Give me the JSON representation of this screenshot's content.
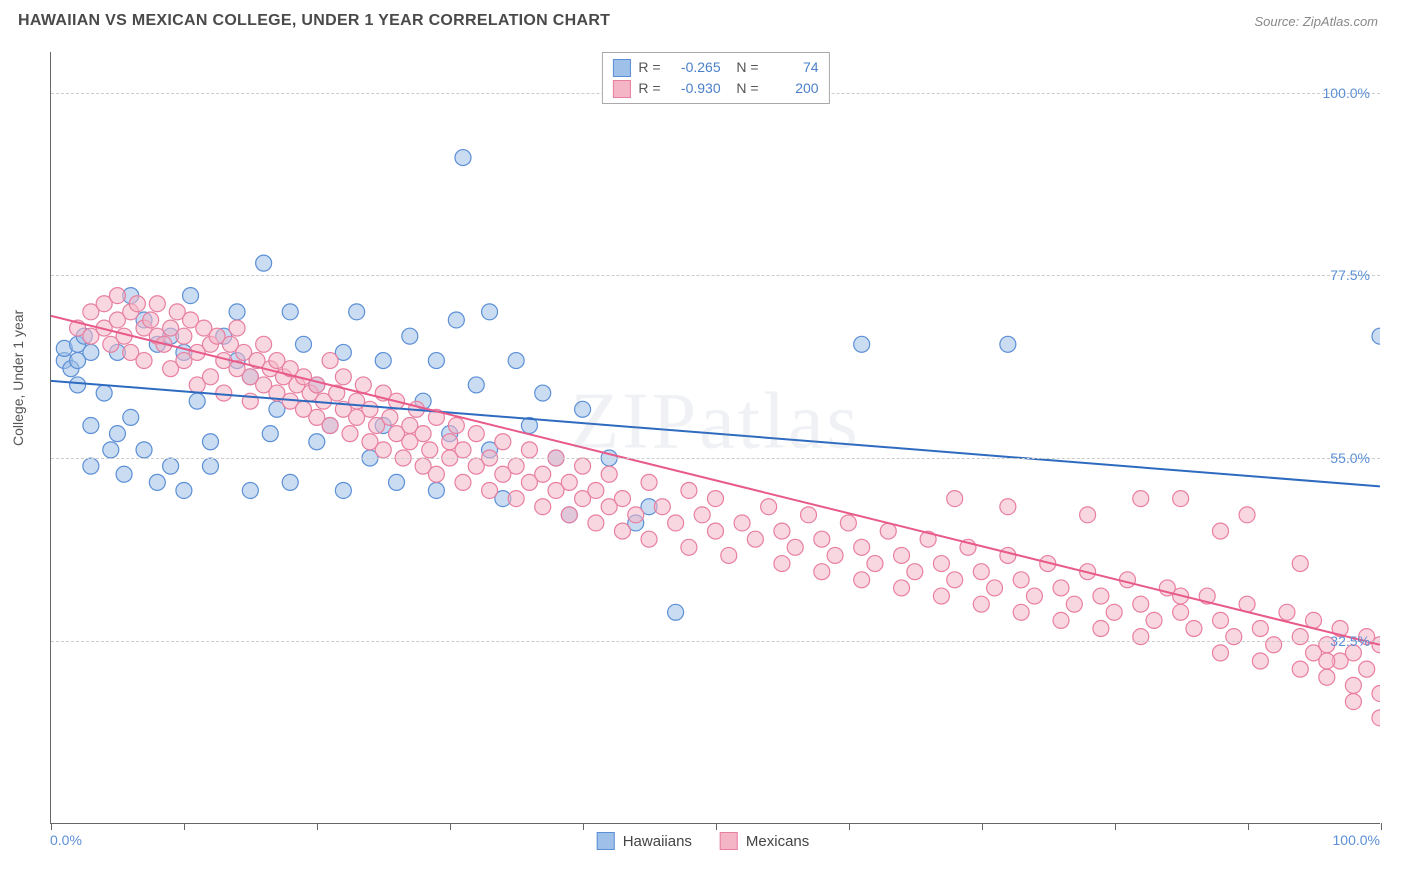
{
  "title": "HAWAIIAN VS MEXICAN COLLEGE, UNDER 1 YEAR CORRELATION CHART",
  "source": "Source: ZipAtlas.com",
  "watermark": "ZIPatlas",
  "ylabel": "College, Under 1 year",
  "chart": {
    "type": "scatter",
    "xlim": [
      0,
      100
    ],
    "ylim": [
      10,
      105
    ],
    "x_ticks": [
      0,
      10,
      20,
      30,
      40,
      50,
      60,
      70,
      80,
      90,
      100
    ],
    "x_tick_labels": {
      "0": "0.0%",
      "100": "100.0%"
    },
    "y_gridlines": [
      32.5,
      55.0,
      77.5,
      100.0
    ],
    "y_tick_labels": [
      "32.5%",
      "55.0%",
      "77.5%",
      "100.0%"
    ],
    "grid_color": "#cccccc",
    "background_color": "#ffffff",
    "axis_color": "#666666",
    "marker_radius": 8,
    "marker_opacity": 0.55,
    "tick_label_color": "#5b8fd6"
  },
  "series": [
    {
      "name": "Hawaiians",
      "color_fill": "#9fc0e8",
      "color_stroke": "#5b8fd6",
      "R": "-0.265",
      "N": "74",
      "trend": {
        "x1": 0,
        "y1": 64.5,
        "x2": 100,
        "y2": 51.5,
        "color": "#2e6bc0"
      },
      "points": [
        [
          1,
          67
        ],
        [
          1,
          68.5
        ],
        [
          1.5,
          66
        ],
        [
          2,
          69
        ],
        [
          2,
          67
        ],
        [
          2,
          64
        ],
        [
          2.5,
          70
        ],
        [
          3,
          68
        ],
        [
          3,
          59
        ],
        [
          3,
          54
        ],
        [
          4,
          63
        ],
        [
          4.5,
          56
        ],
        [
          5,
          58
        ],
        [
          5,
          68
        ],
        [
          5.5,
          53
        ],
        [
          6,
          75
        ],
        [
          6,
          60
        ],
        [
          7,
          72
        ],
        [
          7,
          56
        ],
        [
          8,
          69
        ],
        [
          8,
          52
        ],
        [
          9,
          70
        ],
        [
          9,
          54
        ],
        [
          10,
          68
        ],
        [
          10,
          51
        ],
        [
          10.5,
          75
        ],
        [
          11,
          62
        ],
        [
          12,
          57
        ],
        [
          12,
          54
        ],
        [
          14,
          73
        ],
        [
          14,
          67
        ],
        [
          15,
          51
        ],
        [
          15,
          65
        ],
        [
          16,
          79
        ],
        [
          16.5,
          58
        ],
        [
          18,
          73
        ],
        [
          18,
          52
        ],
        [
          19,
          69
        ],
        [
          20,
          64
        ],
        [
          20,
          57
        ],
        [
          21,
          59
        ],
        [
          22,
          68
        ],
        [
          22,
          51
        ],
        [
          23,
          73
        ],
        [
          24,
          55
        ],
        [
          25,
          67
        ],
        [
          25,
          59
        ],
        [
          26,
          52
        ],
        [
          27,
          70
        ],
        [
          28,
          62
        ],
        [
          29,
          67
        ],
        [
          29,
          51
        ],
        [
          30,
          58
        ],
        [
          30.5,
          72
        ],
        [
          31,
          92
        ],
        [
          32,
          64
        ],
        [
          33,
          56
        ],
        [
          33,
          73
        ],
        [
          34,
          50
        ],
        [
          35,
          67
        ],
        [
          36,
          59
        ],
        [
          37,
          63
        ],
        [
          38,
          55
        ],
        [
          39,
          48
        ],
        [
          40,
          61
        ],
        [
          42,
          55
        ],
        [
          44,
          47
        ],
        [
          45,
          49
        ],
        [
          47,
          36
        ],
        [
          61,
          69
        ],
        [
          72,
          69
        ],
        [
          100,
          70
        ],
        [
          13,
          70
        ],
        [
          17,
          61
        ]
      ]
    },
    {
      "name": "Mexicans",
      "color_fill": "#f4b6c6",
      "color_stroke": "#e87fa0",
      "R": "-0.930",
      "N": "200",
      "trend": {
        "x1": 0,
        "y1": 72.5,
        "x2": 100,
        "y2": 32.0,
        "color": "#e85a8a"
      },
      "points": [
        [
          2,
          71
        ],
        [
          3,
          73
        ],
        [
          3,
          70
        ],
        [
          4,
          74
        ],
        [
          4,
          71
        ],
        [
          4.5,
          69
        ],
        [
          5,
          72
        ],
        [
          5,
          75
        ],
        [
          5.5,
          70
        ],
        [
          6,
          73
        ],
        [
          6,
          68
        ],
        [
          6.5,
          74
        ],
        [
          7,
          71
        ],
        [
          7,
          67
        ],
        [
          7.5,
          72
        ],
        [
          8,
          70
        ],
        [
          8,
          74
        ],
        [
          8.5,
          69
        ],
        [
          9,
          71
        ],
        [
          9,
          66
        ],
        [
          9.5,
          73
        ],
        [
          10,
          70
        ],
        [
          10,
          67
        ],
        [
          10.5,
          72
        ],
        [
          11,
          68
        ],
        [
          11,
          64
        ],
        [
          11.5,
          71
        ],
        [
          12,
          69
        ],
        [
          12,
          65
        ],
        [
          12.5,
          70
        ],
        [
          13,
          67
        ],
        [
          13,
          63
        ],
        [
          13.5,
          69
        ],
        [
          14,
          66
        ],
        [
          14,
          71
        ],
        [
          14.5,
          68
        ],
        [
          15,
          65
        ],
        [
          15,
          62
        ],
        [
          15.5,
          67
        ],
        [
          16,
          64
        ],
        [
          16,
          69
        ],
        [
          16.5,
          66
        ],
        [
          17,
          63
        ],
        [
          17,
          67
        ],
        [
          17.5,
          65
        ],
        [
          18,
          62
        ],
        [
          18,
          66
        ],
        [
          18.5,
          64
        ],
        [
          19,
          61
        ],
        [
          19,
          65
        ],
        [
          19.5,
          63
        ],
        [
          20,
          60
        ],
        [
          20,
          64
        ],
        [
          20.5,
          62
        ],
        [
          21,
          67
        ],
        [
          21,
          59
        ],
        [
          21.5,
          63
        ],
        [
          22,
          61
        ],
        [
          22,
          65
        ],
        [
          22.5,
          58
        ],
        [
          23,
          62
        ],
        [
          23,
          60
        ],
        [
          23.5,
          64
        ],
        [
          24,
          57
        ],
        [
          24,
          61
        ],
        [
          24.5,
          59
        ],
        [
          25,
          63
        ],
        [
          25,
          56
        ],
        [
          25.5,
          60
        ],
        [
          26,
          58
        ],
        [
          26,
          62
        ],
        [
          26.5,
          55
        ],
        [
          27,
          59
        ],
        [
          27,
          57
        ],
        [
          27.5,
          61
        ],
        [
          28,
          54
        ],
        [
          28,
          58
        ],
        [
          28.5,
          56
        ],
        [
          29,
          60
        ],
        [
          29,
          53
        ],
        [
          30,
          57
        ],
        [
          30,
          55
        ],
        [
          30.5,
          59
        ],
        [
          31,
          52
        ],
        [
          31,
          56
        ],
        [
          32,
          54
        ],
        [
          32,
          58
        ],
        [
          33,
          51
        ],
        [
          33,
          55
        ],
        [
          34,
          53
        ],
        [
          34,
          57
        ],
        [
          35,
          50
        ],
        [
          35,
          54
        ],
        [
          36,
          52
        ],
        [
          36,
          56
        ],
        [
          37,
          49
        ],
        [
          37,
          53
        ],
        [
          38,
          51
        ],
        [
          38,
          55
        ],
        [
          39,
          48
        ],
        [
          39,
          52
        ],
        [
          40,
          50
        ],
        [
          40,
          54
        ],
        [
          41,
          47
        ],
        [
          41,
          51
        ],
        [
          42,
          49
        ],
        [
          42,
          53
        ],
        [
          43,
          46
        ],
        [
          43,
          50
        ],
        [
          44,
          48
        ],
        [
          45,
          52
        ],
        [
          45,
          45
        ],
        [
          46,
          49
        ],
        [
          47,
          47
        ],
        [
          48,
          51
        ],
        [
          48,
          44
        ],
        [
          49,
          48
        ],
        [
          50,
          46
        ],
        [
          50,
          50
        ],
        [
          51,
          43
        ],
        [
          52,
          47
        ],
        [
          53,
          45
        ],
        [
          54,
          49
        ],
        [
          55,
          42
        ],
        [
          55,
          46
        ],
        [
          56,
          44
        ],
        [
          57,
          48
        ],
        [
          58,
          41
        ],
        [
          58,
          45
        ],
        [
          59,
          43
        ],
        [
          60,
          47
        ],
        [
          61,
          40
        ],
        [
          61,
          44
        ],
        [
          62,
          42
        ],
        [
          63,
          46
        ],
        [
          64,
          39
        ],
        [
          64,
          43
        ],
        [
          65,
          41
        ],
        [
          66,
          45
        ],
        [
          67,
          38
        ],
        [
          67,
          42
        ],
        [
          68,
          40
        ],
        [
          69,
          44
        ],
        [
          70,
          37
        ],
        [
          70,
          41
        ],
        [
          71,
          39
        ],
        [
          72,
          43
        ],
        [
          73,
          36
        ],
        [
          73,
          40
        ],
        [
          74,
          38
        ],
        [
          75,
          42
        ],
        [
          76,
          35
        ],
        [
          76,
          39
        ],
        [
          77,
          37
        ],
        [
          78,
          41
        ],
        [
          79,
          34
        ],
        [
          79,
          38
        ],
        [
          80,
          36
        ],
        [
          81,
          40
        ],
        [
          82,
          33
        ],
        [
          82,
          37
        ],
        [
          83,
          35
        ],
        [
          84,
          39
        ],
        [
          85,
          50
        ],
        [
          85,
          36
        ],
        [
          86,
          34
        ],
        [
          87,
          38
        ],
        [
          88,
          31
        ],
        [
          88,
          35
        ],
        [
          89,
          33
        ],
        [
          90,
          37
        ],
        [
          91,
          30
        ],
        [
          91,
          34
        ],
        [
          92,
          32
        ],
        [
          93,
          36
        ],
        [
          94,
          29
        ],
        [
          94,
          33
        ],
        [
          95,
          31
        ],
        [
          95,
          35
        ],
        [
          96,
          28
        ],
        [
          96,
          32
        ],
        [
          97,
          30
        ],
        [
          97,
          34
        ],
        [
          98,
          27
        ],
        [
          98,
          31
        ],
        [
          99,
          29
        ],
        [
          99,
          33
        ],
        [
          100,
          32
        ],
        [
          100,
          26
        ],
        [
          100,
          23
        ],
        [
          88,
          46
        ],
        [
          90,
          48
        ],
        [
          82,
          50
        ],
        [
          78,
          48
        ],
        [
          94,
          42
        ],
        [
          96,
          30
        ],
        [
          98,
          25
        ],
        [
          85,
          38
        ],
        [
          72,
          49
        ],
        [
          68,
          50
        ]
      ]
    }
  ],
  "legend_bottom": [
    {
      "label": "Hawaiians",
      "fill": "#9fc0e8",
      "stroke": "#5b8fd6"
    },
    {
      "label": "Mexicans",
      "fill": "#f4b6c6",
      "stroke": "#e87fa0"
    }
  ]
}
